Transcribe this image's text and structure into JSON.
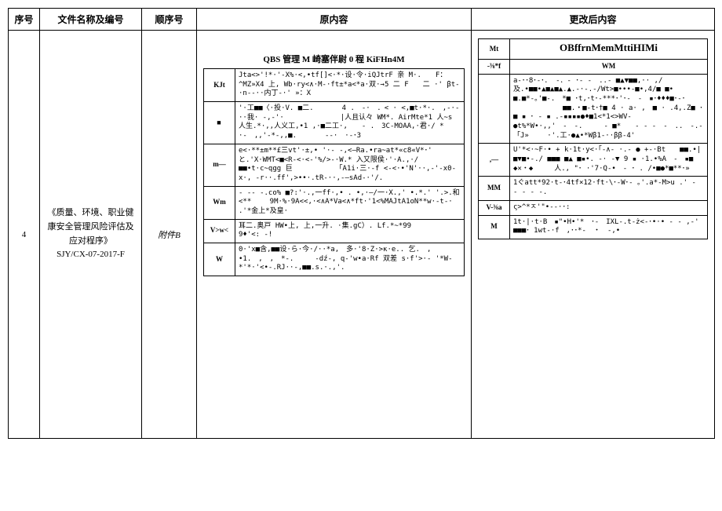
{
  "headers": {
    "seq": "序号",
    "name": "文件名称及编号",
    "order": "顺序号",
    "original": "原内容",
    "changed": "更改后内容"
  },
  "row": {
    "seq": "4",
    "doc_name_line1": "《质量、环境、职业健康安全管理风险评估及应对程序》",
    "doc_name_line2": "SJY/CX-07-2017-F",
    "order": "附件B",
    "orig_title": "QBS 管理 M 崎塞伴尉 0 程 KiFHn4M",
    "orig_rows": [
      {
        "label": "KJt",
        "content": "Jta<>'!*·'-X%·<,•tf[]<·*·设·令·iQJtrF 亲 M·.　　F：^MZ»X4\n上,\nWb·ry<∧·M-·ft±*a<*a·双·→5 二 F　　二 ·' βt-·n--··内丁-·'\n»：X"
      },
      {
        "label": "■",
        "content": "'·工■■〈·投·V. ■二.　　　　4\n.　-·　．< · <,■t·*·.　,-·-··我·\n-,-'·　　　　　　　　|人且认々\nWM*. AirMte*1 人~s 人生.*·,,人义工,•1\n,·■二工·,　　- .　3C-MOAA,·君·/\n*　·-　,,'-*-,,■.　　　　--·　·-･3"
      },
      {
        "label": "m—",
        "content": "e<·**±m**£三vt'·±,•\n'·- -,<—Ra.•ra~at*«c8«V*･'\nと.'X·WMT<■<R-<·<-'%/>-·W.* 入又限侯·'·A.,·/■■•t·c~qgg 巨\n　　　　　　「A1i·三·-f\n<-<·•'N'··,-'-x0-x·,\n-r··.ff',>••·.tR-··,-—sAd-·'/."
      },
      {
        "label": "Wm",
        "content": "- -- -.co%\n■?:'·.,一ff·,• . •,·—/一·X.,'\n•.*.' '.>.和<**\n　　9M·%·9A<<,·<∧A*Va<∧*ft·'1<%MAJtA1oN**w·-t-·\n.'*金上*及皇·"
      },
      {
        "label": "V>w<",
        "content": "耳二.奥戸 HW•上,\n上,一升.\n·集.gC）. Lf.*~*99　　　　　9♦'<: -!"
      },
      {
        "label": "W",
        "content": "0·'x■含,■■设·ら·今·/··*a,　多·'8·Z·>ĸ·e..\n乞.　,　•1.　,　,　*-.　　　-dź-,\nq-'w•a·Rf 双差 s·f'>·-\n'*W-*'*·'<•-.RJ··-,■■.s.·.,'."
      }
    ],
    "changed_title": "OBffrnMemMttiHIMi",
    "changed_header": {
      "left": "Mt",
      "right_label": "-⅜*f",
      "right_content": "WM"
    },
    "changed_rows": [
      {
        "label": "",
        "content": "a-･･8･-･． -．- ･- -　..-\n■▲▼■■,·· ,/及.•■■•▲■▲■▲.▲.-·-.-/Wt>■•••-■•,4/■ ■•\n■.■*-｡'■-.　*■\n･t,･t･-***･'･-　-　▪･♦♦♦■･-･\n　　　　　　　■■.・■-t･†■\n4 · a· ,　■ · .4,.Z■ ･ ■ ▪ ･ - ▪ .-▪▪▪▪●♦■1<*1<>WV-\n●t%*W•·,,'　-　-.　　　-\n■*　　- - -　-　..　-.-　　　　　　「J»\n　　·'.工·●▲•*Wβ1-··ββ-4'"
      },
      {
        "label": ",—",
        "content": "U'*<·~F·• +\nk·1t·y<·｢-∧- ·.- ● +-·Bt　　■■.•|\n■▼■•-./ ■■■ ■▲ ■▪•. -·\n-▼ 9 ▪ ·1.•%A　-　▪■ ◆✕・◆　　　人., \"･\n·'7·Q-•　- ･ . /•■●*■**･»"
      },
      {
        "label": "MM",
        "content": "1ぐatt*92·t-･4tf×12·ft·\\･-W･-\n｡'.a*-M>u\n.' - - - - -."
      },
      {
        "label": "V-⅜a",
        "content": "ς>^*ㅈ'\"•--·･:"
      },
      {
        "label": "M",
        "content": "1t·|·t·B　▪\"•H•'*　･-　IXL-.t-ż<-･•·•\n- - ,-'　　■■■･\n1wt-·f　,･･*-　・　-,•"
      }
    ]
  }
}
